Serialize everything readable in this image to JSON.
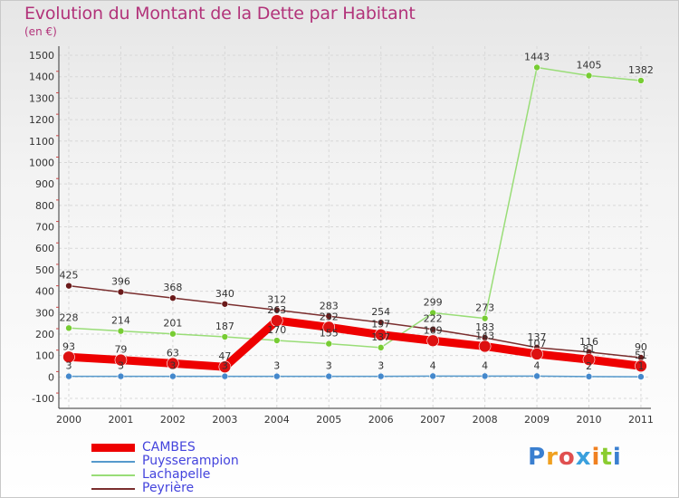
{
  "header": {
    "title": "Evolution du Montant de la Dette par Habitant",
    "subtitle": "(en €)"
  },
  "logo": {
    "text": "Proxiti"
  },
  "chart_data": {
    "type": "line",
    "title": "Evolution du Montant de la Dette par Habitant",
    "subtitle": "(en €)",
    "categories": [
      "2000",
      "2001",
      "2002",
      "2003",
      "2004",
      "2005",
      "2006",
      "2007",
      "2008",
      "2009",
      "2010",
      "2011"
    ],
    "ylim": [
      -100,
      1500
    ],
    "yticks": [
      -100,
      0,
      100,
      200,
      300,
      400,
      500,
      600,
      700,
      800,
      900,
      1000,
      1100,
      1200,
      1300,
      1400,
      1500
    ],
    "grid": true,
    "legend_position": "bottom-left",
    "series": [
      {
        "name": "Peyrière",
        "color": "#7a2e2e",
        "point_color": "#6a1a1a",
        "values": [
          425,
          396,
          368,
          340,
          312,
          283,
          254,
          222,
          183,
          137,
          116,
          90
        ],
        "labels": [
          "425",
          "396",
          "368",
          "340",
          "312",
          "283",
          "254",
          "222",
          "183",
          "137",
          "116",
          "90"
        ]
      },
      {
        "name": "Lachapelle",
        "color": "#99dd77",
        "point_color": "#77cc33",
        "values": [
          228,
          214,
          201,
          187,
          170,
          155,
          137,
          299,
          273,
          1443,
          1405,
          1382
        ],
        "labels": [
          "228",
          "214",
          "201",
          "187",
          "170",
          "155",
          "137",
          "299",
          "273",
          "1443",
          "1405",
          "1382"
        ]
      },
      {
        "name": "Puysserampion",
        "color": "#5599cc",
        "point_color": "#4488cc",
        "values": [
          3,
          3,
          3,
          3,
          3,
          3,
          3,
          4,
          4,
          4,
          2,
          1
        ],
        "labels": [
          "3",
          "3",
          "3",
          "3",
          "3",
          "3",
          "3",
          "4",
          "4",
          "4",
          "2",
          "1"
        ]
      },
      {
        "name": "CAMBES",
        "color": "#ee0000",
        "point_color": "#dd1111",
        "values": [
          93,
          79,
          63,
          47,
          263,
          232,
          197,
          169,
          143,
          107,
          81,
          51
        ],
        "labels": [
          "93",
          "79",
          "63",
          "47",
          "263",
          "232",
          "197",
          "169",
          "143",
          "107",
          "81",
          "51"
        ]
      }
    ]
  }
}
